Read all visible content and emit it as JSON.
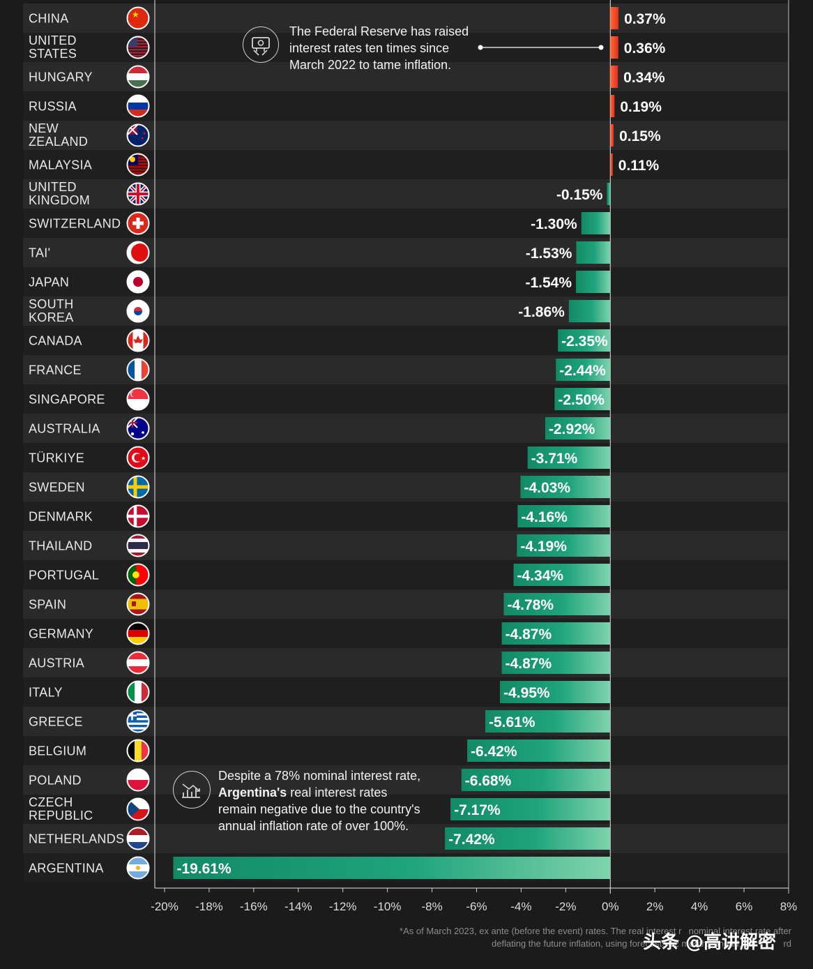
{
  "chart_data": {
    "type": "bar",
    "orientation": "horizontal",
    "xlim": [
      -20,
      8
    ],
    "x_ticks": [
      "-20%",
      "-18%",
      "-16%",
      "-14%",
      "-12%",
      "-10%",
      "-8%",
      "-6%",
      "-4%",
      "-2%",
      "0%",
      "2%",
      "4%",
      "6%",
      "8%"
    ],
    "positive_color": "#ef4123",
    "negative_color": "#1f9b78",
    "categories": [
      {
        "name": "CHINA",
        "lines": [
          "CHINA"
        ],
        "value": 0.37,
        "label": "0.37%",
        "flag": "china-flag"
      },
      {
        "name": "UNITED STATES",
        "lines": [
          "UNITED",
          "STATES"
        ],
        "value": 0.36,
        "label": "0.36%",
        "flag": "united-states-flag"
      },
      {
        "name": "HUNGARY",
        "lines": [
          "HUNGARY"
        ],
        "value": 0.34,
        "label": "0.34%",
        "flag": "hungary-flag"
      },
      {
        "name": "RUSSIA",
        "lines": [
          "RUSSIA"
        ],
        "value": 0.19,
        "label": "0.19%",
        "flag": "russia-flag"
      },
      {
        "name": "NEW ZEALAND",
        "lines": [
          "NEW",
          "ZEALAND"
        ],
        "value": 0.15,
        "label": "0.15%",
        "flag": "new-zealand-flag"
      },
      {
        "name": "MALAYSIA",
        "lines": [
          "MALAYSIA"
        ],
        "value": 0.11,
        "label": "0.11%",
        "flag": "malaysia-flag"
      },
      {
        "name": "UNITED KINGDOM",
        "lines": [
          "UNITED",
          "KINGDOM"
        ],
        "value": -0.15,
        "label": "-0.15%",
        "flag": "united-kingdom-flag"
      },
      {
        "name": "SWITZERLAND",
        "lines": [
          "SWITZERLAND"
        ],
        "value": -1.3,
        "label": "-1.30%",
        "flag": "switzerland-flag"
      },
      {
        "name": "TAI'",
        "lines": [
          "TAI'"
        ],
        "value": -1.53,
        "label": "-1.53%",
        "flag": "obscured-flag"
      },
      {
        "name": "JAPAN",
        "lines": [
          "JAPAN"
        ],
        "value": -1.54,
        "label": "-1.54%",
        "flag": "japan-flag"
      },
      {
        "name": "SOUTH KOREA",
        "lines": [
          "SOUTH",
          "KOREA"
        ],
        "value": -1.86,
        "label": "-1.86%",
        "flag": "south-korea-flag"
      },
      {
        "name": "CANADA",
        "lines": [
          "CANADA"
        ],
        "value": -2.35,
        "label": "-2.35%",
        "flag": "canada-flag"
      },
      {
        "name": "FRANCE",
        "lines": [
          "FRANCE"
        ],
        "value": -2.44,
        "label": "-2.44%",
        "flag": "france-flag"
      },
      {
        "name": "SINGAPORE",
        "lines": [
          "SINGAPORE"
        ],
        "value": -2.5,
        "label": "-2.50%",
        "flag": "singapore-flag"
      },
      {
        "name": "AUSTRALIA",
        "lines": [
          "AUSTRALIA"
        ],
        "value": -2.92,
        "label": "-2.92%",
        "flag": "australia-flag"
      },
      {
        "name": "TÜRKIYE",
        "lines": [
          "TÜRKIYE"
        ],
        "value": -3.71,
        "label": "-3.71%",
        "flag": "turkiye-flag"
      },
      {
        "name": "SWEDEN",
        "lines": [
          "SWEDEN"
        ],
        "value": -4.03,
        "label": "-4.03%",
        "flag": "sweden-flag"
      },
      {
        "name": "DENMARK",
        "lines": [
          "DENMARK"
        ],
        "value": -4.16,
        "label": "-4.16%",
        "flag": "denmark-flag"
      },
      {
        "name": "THAILAND",
        "lines": [
          "THAILAND"
        ],
        "value": -4.19,
        "label": "-4.19%",
        "flag": "thailand-flag"
      },
      {
        "name": "PORTUGAL",
        "lines": [
          "PORTUGAL"
        ],
        "value": -4.34,
        "label": "-4.34%",
        "flag": "portugal-flag"
      },
      {
        "name": "SPAIN",
        "lines": [
          "SPAIN"
        ],
        "value": -4.78,
        "label": "-4.78%",
        "flag": "spain-flag"
      },
      {
        "name": "GERMANY",
        "lines": [
          "GERMANY"
        ],
        "value": -4.87,
        "label": "-4.87%",
        "flag": "germany-flag"
      },
      {
        "name": "AUSTRIA",
        "lines": [
          "AUSTRIA"
        ],
        "value": -4.87,
        "label": "-4.87%",
        "flag": "austria-flag"
      },
      {
        "name": "ITALY",
        "lines": [
          "ITALY"
        ],
        "value": -4.95,
        "label": "-4.95%",
        "flag": "italy-flag"
      },
      {
        "name": "GREECE",
        "lines": [
          "GREECE"
        ],
        "value": -5.61,
        "label": "-5.61%",
        "flag": "greece-flag"
      },
      {
        "name": "BELGIUM",
        "lines": [
          "BELGIUM"
        ],
        "value": -6.42,
        "label": "-6.42%",
        "flag": "belgium-flag"
      },
      {
        "name": "POLAND",
        "lines": [
          "POLAND"
        ],
        "value": -6.68,
        "label": "-6.68%",
        "flag": "poland-flag"
      },
      {
        "name": "CZECH REPUBLIC",
        "lines": [
          "CZECH",
          "REPUBLIC"
        ],
        "value": -7.17,
        "label": "-7.17%",
        "flag": "czech-republic-flag"
      },
      {
        "name": "NETHERLANDS",
        "lines": [
          "NETHERLANDS"
        ],
        "value": -7.42,
        "label": "-7.42%",
        "flag": "netherlands-flag"
      },
      {
        "name": "ARGENTINA",
        "lines": [
          "ARGENTINA"
        ],
        "value": -19.61,
        "label": "-19.61%",
        "flag": "argentina-flag"
      }
    ]
  },
  "annotations": {
    "fed_note": {
      "lines": [
        "The Federal Reserve has raised",
        "interest rates ten times since",
        "March 2022 to tame inflation."
      ],
      "icon": "money-icon"
    },
    "argentina_note": {
      "lines": [
        [
          {
            "text": "Despite a 78% nominal interest rate,",
            "bold": false
          }
        ],
        [
          {
            "text": "Argentina's",
            "bold": true
          },
          {
            "text": " real interest rates",
            "bold": false
          }
        ],
        [
          {
            "text": "remain negative due to the country's",
            "bold": false
          }
        ],
        [
          {
            "text": "annual inflation rate of over 100%.",
            "bold": false
          }
        ]
      ],
      "icon": "declining-chart-icon"
    }
  },
  "footnote": {
    "line1": "*As of March 2023, ex ante (before the event) rates. The real interest r",
    "line1_tail": "nominal interest rate after",
    "line2": "deflating the future inflation, using forecasts 12 months ahead, cal",
    "line2_tail": "rd"
  },
  "watermark": "头条 @高讲解密"
}
